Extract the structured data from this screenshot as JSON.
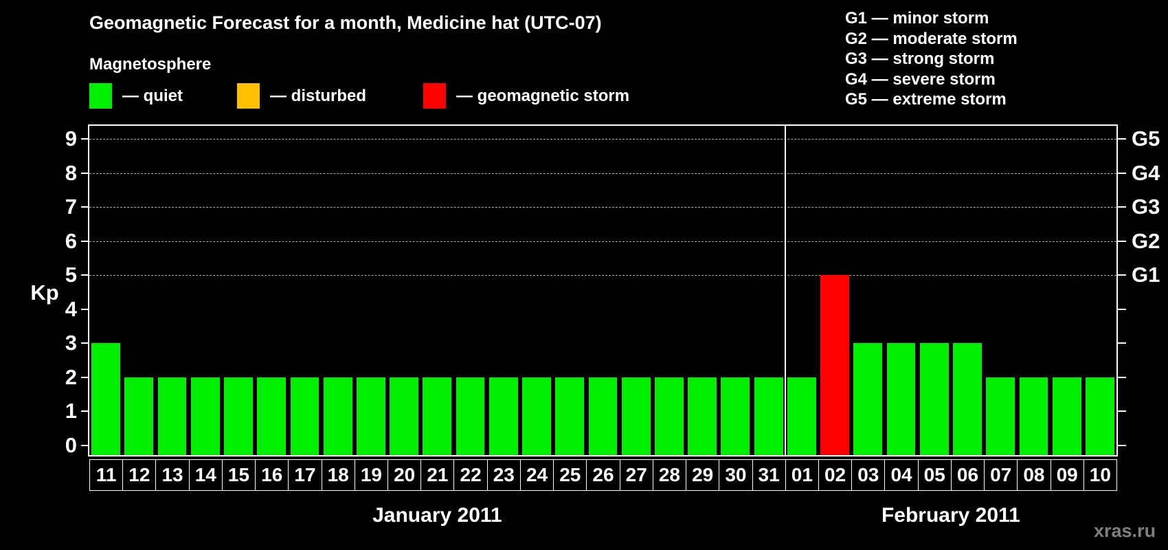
{
  "title": "Geomagnetic Forecast for a month, Medicine hat (UTC-07)",
  "legend": {
    "heading": "Magnetosphere",
    "items": [
      {
        "key": "quiet",
        "label": "— quiet",
        "color": "#00ee00"
      },
      {
        "key": "disturbed",
        "label": "— disturbed",
        "color": "#ffc000"
      },
      {
        "key": "storm",
        "label": "— geomagnetic storm",
        "color": "#ff0000"
      }
    ]
  },
  "g_scale_legend": [
    "G1 — minor storm",
    "G2 — moderate storm",
    "G3 — strong storm",
    "G4 — severe storm",
    "G5 — extreme storm"
  ],
  "watermark": "xras.ru",
  "chart_data": {
    "type": "bar",
    "ylabel": "Kp",
    "ylim": [
      0,
      9
    ],
    "y_ticks": [
      0,
      1,
      2,
      3,
      4,
      5,
      6,
      7,
      8,
      9
    ],
    "gridlines_kp": [
      5,
      6,
      7,
      8,
      9
    ],
    "grid_style": "dashed horizontal lines at storm thresholds only",
    "right_axis": [
      {
        "label": "G1",
        "kp": 5
      },
      {
        "label": "G2",
        "kp": 6
      },
      {
        "label": "G3",
        "kp": 7
      },
      {
        "label": "G4",
        "kp": 8
      },
      {
        "label": "G5",
        "kp": 9
      }
    ],
    "months": [
      {
        "name": "January 2011",
        "days": [
          {
            "label": "11",
            "kp": 3,
            "status": "quiet"
          },
          {
            "label": "12",
            "kp": 2,
            "status": "quiet"
          },
          {
            "label": "13",
            "kp": 2,
            "status": "quiet"
          },
          {
            "label": "14",
            "kp": 2,
            "status": "quiet"
          },
          {
            "label": "15",
            "kp": 2,
            "status": "quiet"
          },
          {
            "label": "16",
            "kp": 2,
            "status": "quiet"
          },
          {
            "label": "17",
            "kp": 2,
            "status": "quiet"
          },
          {
            "label": "18",
            "kp": 2,
            "status": "quiet"
          },
          {
            "label": "19",
            "kp": 2,
            "status": "quiet"
          },
          {
            "label": "20",
            "kp": 2,
            "status": "quiet"
          },
          {
            "label": "21",
            "kp": 2,
            "status": "quiet"
          },
          {
            "label": "22",
            "kp": 2,
            "status": "quiet"
          },
          {
            "label": "23",
            "kp": 2,
            "status": "quiet"
          },
          {
            "label": "24",
            "kp": 2,
            "status": "quiet"
          },
          {
            "label": "25",
            "kp": 2,
            "status": "quiet"
          },
          {
            "label": "26",
            "kp": 2,
            "status": "quiet"
          },
          {
            "label": "27",
            "kp": 2,
            "status": "quiet"
          },
          {
            "label": "28",
            "kp": 2,
            "status": "quiet"
          },
          {
            "label": "29",
            "kp": 2,
            "status": "quiet"
          },
          {
            "label": "30",
            "kp": 2,
            "status": "quiet"
          },
          {
            "label": "31",
            "kp": 2,
            "status": "quiet"
          }
        ]
      },
      {
        "name": "February 2011",
        "days": [
          {
            "label": "01",
            "kp": 2,
            "status": "quiet"
          },
          {
            "label": "02",
            "kp": 5,
            "status": "storm"
          },
          {
            "label": "03",
            "kp": 3,
            "status": "quiet"
          },
          {
            "label": "04",
            "kp": 3,
            "status": "quiet"
          },
          {
            "label": "05",
            "kp": 3,
            "status": "quiet"
          },
          {
            "label": "06",
            "kp": 3,
            "status": "quiet"
          },
          {
            "label": "07",
            "kp": 2,
            "status": "quiet"
          },
          {
            "label": "08",
            "kp": 2,
            "status": "quiet"
          },
          {
            "label": "09",
            "kp": 2,
            "status": "quiet"
          },
          {
            "label": "10",
            "kp": 2,
            "status": "quiet"
          }
        ]
      }
    ]
  }
}
